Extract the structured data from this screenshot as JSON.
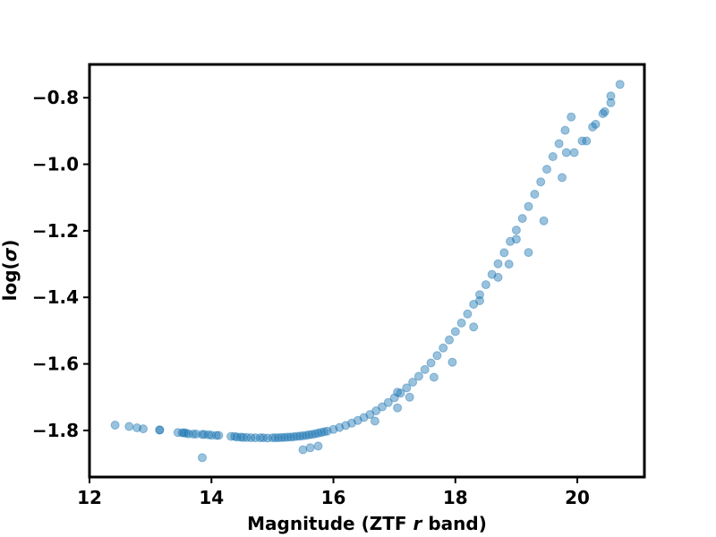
{
  "chart_data": {
    "type": "scatter",
    "xlabel_main": "Magnitude (ZTF ",
    "xlabel_italic": "r",
    "xlabel_tail": " band)",
    "ylabel_main": "log(",
    "ylabel_italic": "σ",
    "ylabel_tail": ")",
    "xlim": [
      12.0,
      21.1
    ],
    "ylim": [
      -1.94,
      -0.7
    ],
    "x_ticks": [
      12,
      14,
      16,
      18,
      20
    ],
    "x_tick_labels": [
      "12",
      "14",
      "16",
      "18",
      "20"
    ],
    "y_ticks": [
      -1.8,
      -1.6,
      -1.4,
      -1.2,
      -1.0,
      -0.8
    ],
    "y_tick_labels": [
      "−1.8",
      "−1.6",
      "−1.4",
      "−1.2",
      "−1.0",
      "−0.8"
    ],
    "grid": false,
    "marker_color": "#1f77b4",
    "marker_alpha": 0.45,
    "points": [
      [
        12.42,
        -1.784
      ],
      [
        12.65,
        -1.788
      ],
      [
        12.78,
        -1.792
      ],
      [
        12.88,
        -1.795
      ],
      [
        13.15,
        -1.798
      ],
      [
        13.15,
        -1.799
      ],
      [
        13.45,
        -1.806
      ],
      [
        13.52,
        -1.807
      ],
      [
        13.55,
        -1.807
      ],
      [
        13.58,
        -1.808
      ],
      [
        13.62,
        -1.81
      ],
      [
        13.7,
        -1.811
      ],
      [
        13.75,
        -1.811
      ],
      [
        13.85,
        -1.812
      ],
      [
        13.88,
        -1.812
      ],
      [
        13.95,
        -1.813
      ],
      [
        14.0,
        -1.814
      ],
      [
        14.08,
        -1.815
      ],
      [
        14.12,
        -1.815
      ],
      [
        13.85,
        -1.882
      ],
      [
        14.32,
        -1.818
      ],
      [
        14.38,
        -1.818
      ],
      [
        14.42,
        -1.82
      ],
      [
        14.48,
        -1.82
      ],
      [
        14.52,
        -1.821
      ],
      [
        14.58,
        -1.821
      ],
      [
        14.65,
        -1.822
      ],
      [
        14.72,
        -1.822
      ],
      [
        14.8,
        -1.822
      ],
      [
        14.85,
        -1.822
      ],
      [
        14.92,
        -1.823
      ],
      [
        15.0,
        -1.822
      ],
      [
        15.05,
        -1.822
      ],
      [
        15.1,
        -1.822
      ],
      [
        15.15,
        -1.821
      ],
      [
        15.2,
        -1.821
      ],
      [
        15.25,
        -1.82
      ],
      [
        15.3,
        -1.82
      ],
      [
        15.35,
        -1.819
      ],
      [
        15.4,
        -1.818
      ],
      [
        15.45,
        -1.817
      ],
      [
        15.5,
        -1.816
      ],
      [
        15.55,
        -1.815
      ],
      [
        15.6,
        -1.813
      ],
      [
        15.65,
        -1.812
      ],
      [
        15.7,
        -1.81
      ],
      [
        15.75,
        -1.808
      ],
      [
        15.8,
        -1.806
      ],
      [
        15.85,
        -1.804
      ],
      [
        15.9,
        -1.802
      ],
      [
        15.5,
        -1.858
      ],
      [
        15.62,
        -1.852
      ],
      [
        15.75,
        -1.847
      ],
      [
        16.0,
        -1.797
      ],
      [
        16.1,
        -1.791
      ],
      [
        16.2,
        -1.785
      ],
      [
        16.3,
        -1.778
      ],
      [
        16.4,
        -1.77
      ],
      [
        16.5,
        -1.761
      ],
      [
        16.6,
        -1.752
      ],
      [
        16.7,
        -1.741
      ],
      [
        16.8,
        -1.729
      ],
      [
        16.9,
        -1.716
      ],
      [
        17.0,
        -1.702
      ],
      [
        17.1,
        -1.688
      ],
      [
        17.2,
        -1.672
      ],
      [
        17.3,
        -1.655
      ],
      [
        17.4,
        -1.637
      ],
      [
        17.5,
        -1.617
      ],
      [
        17.6,
        -1.597
      ],
      [
        17.7,
        -1.575
      ],
      [
        17.8,
        -1.552
      ],
      [
        17.9,
        -1.528
      ],
      [
        18.0,
        -1.503
      ],
      [
        18.1,
        -1.477
      ],
      [
        18.2,
        -1.45
      ],
      [
        18.3,
        -1.421
      ],
      [
        18.4,
        -1.392
      ],
      [
        18.5,
        -1.362
      ],
      [
        18.6,
        -1.331
      ],
      [
        18.7,
        -1.299
      ],
      [
        18.8,
        -1.266
      ],
      [
        18.9,
        -1.232
      ],
      [
        19.0,
        -1.198
      ],
      [
        19.1,
        -1.163
      ],
      [
        19.2,
        -1.127
      ],
      [
        19.3,
        -1.09
      ],
      [
        19.4,
        -1.053
      ],
      [
        19.5,
        -1.015
      ],
      [
        19.6,
        -0.977
      ],
      [
        19.7,
        -0.938
      ],
      [
        19.8,
        -0.898
      ],
      [
        19.9,
        -0.858
      ],
      [
        16.68,
        -1.772
      ],
      [
        17.05,
        -1.685
      ],
      [
        17.05,
        -1.732
      ],
      [
        17.25,
        -1.7
      ],
      [
        17.65,
        -1.64
      ],
      [
        17.95,
        -1.595
      ],
      [
        18.3,
        -1.489
      ],
      [
        18.88,
        -1.3
      ],
      [
        19.2,
        -1.265
      ],
      [
        19.75,
        -1.04
      ],
      [
        19.82,
        -0.965
      ],
      [
        19.95,
        -0.965
      ],
      [
        20.08,
        -0.93
      ],
      [
        20.15,
        -0.93
      ],
      [
        20.25,
        -0.888
      ],
      [
        20.3,
        -0.88
      ],
      [
        20.42,
        -0.848
      ],
      [
        20.45,
        -0.842
      ],
      [
        20.55,
        -0.815
      ],
      [
        20.55,
        -0.795
      ],
      [
        20.7,
        -0.76
      ],
      [
        19.45,
        -1.17
      ],
      [
        19.0,
        -1.225
      ],
      [
        18.7,
        -1.34
      ],
      [
        18.4,
        -1.41
      ]
    ]
  }
}
